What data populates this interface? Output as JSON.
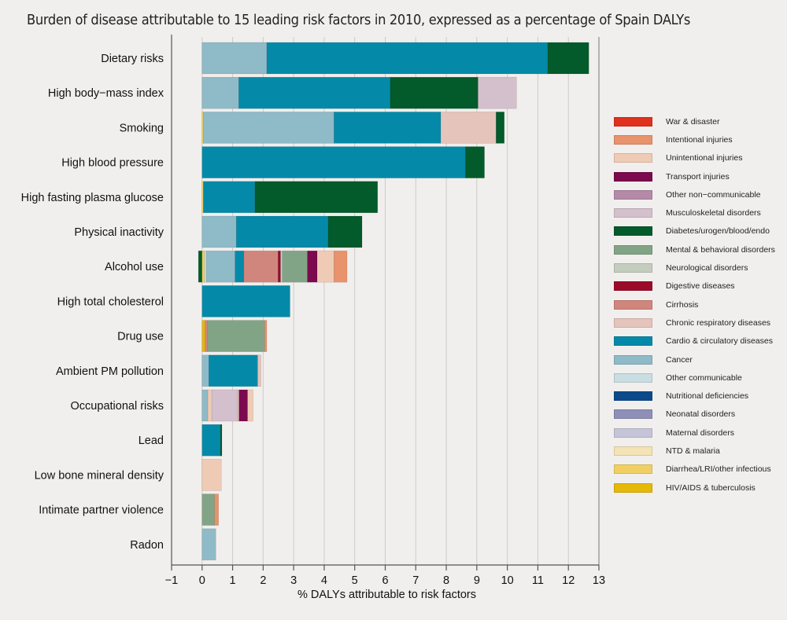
{
  "chart_data": {
    "type": "bar",
    "orientation": "horizontal-stacked",
    "title": "Burden of disease attributable to 15 leading risk factors in 2010, expressed as a percentage of Spain DALYs",
    "xlabel": "% DALYs attributable to risk factors",
    "ylabel": "",
    "xlim": [
      -1,
      13
    ],
    "xticks": [
      -1,
      0,
      1,
      2,
      3,
      4,
      5,
      6,
      7,
      8,
      9,
      10,
      11,
      12,
      13
    ],
    "grid": true,
    "legend_position": "right",
    "causes": [
      {
        "key": "war",
        "name": "War & disaster",
        "color": "#e0301e"
      },
      {
        "key": "intentional",
        "name": "Intentional injuries",
        "color": "#e8936b"
      },
      {
        "key": "unintentional",
        "name": "Unintentional injuries",
        "color": "#efcbb5"
      },
      {
        "key": "transport",
        "name": "Transport injuries",
        "color": "#7b0a4f"
      },
      {
        "key": "other_ncd",
        "name": "Other non−communicable",
        "color": "#b48aa8"
      },
      {
        "key": "musculoskeletal",
        "name": "Musculoskeletal disorders",
        "color": "#d4c0cc"
      },
      {
        "key": "diabetes",
        "name": "Diabetes/urogen/blood/endo",
        "color": "#035a2a"
      },
      {
        "key": "mental",
        "name": "Mental & behavioral disorders",
        "color": "#82a486"
      },
      {
        "key": "neurological",
        "name": "Neurological disorders",
        "color": "#c2cdbd"
      },
      {
        "key": "digestive",
        "name": "Digestive diseases",
        "color": "#9c0a2a"
      },
      {
        "key": "cirrhosis",
        "name": "Cirrhosis",
        "color": "#d0867c"
      },
      {
        "key": "chronic_resp",
        "name": "Chronic respiratory diseases",
        "color": "#e4c4bb"
      },
      {
        "key": "cardio",
        "name": "Cardio & circulatory diseases",
        "color": "#048aa8"
      },
      {
        "key": "cancer",
        "name": "Cancer",
        "color": "#8fbac8"
      },
      {
        "key": "other_comm",
        "name": "Other communicable",
        "color": "#c9dde2"
      },
      {
        "key": "nutritional",
        "name": "Nutritional deficiencies",
        "color": "#0c4a8c"
      },
      {
        "key": "neonatal",
        "name": "Neonatal disorders",
        "color": "#8e90b8"
      },
      {
        "key": "maternal",
        "name": "Maternal disorders",
        "color": "#c5c4d9"
      },
      {
        "key": "ntd",
        "name": "NTD & malaria",
        "color": "#f3e3b5"
      },
      {
        "key": "diarrhea",
        "name": "Diarrhea/LRI/other infectious",
        "color": "#f0d062"
      },
      {
        "key": "hiv",
        "name": "HIV/AIDS & tuberculosis",
        "color": "#e6b80a"
      }
    ],
    "categories": [
      "Dietary risks",
      "High body−mass index",
      "Smoking",
      "High blood pressure",
      "High fasting plasma glucose",
      "Physical inactivity",
      "Alcohol use",
      "High total cholesterol",
      "Drug use",
      "Ambient PM pollution",
      "Occupational risks",
      "Lead",
      "Low bone mineral density",
      "Intimate partner violence",
      "Radon"
    ],
    "bars": [
      {
        "category": "Dietary risks",
        "segments": [
          {
            "cause": "cancer",
            "value": 2.12
          },
          {
            "cause": "cardio",
            "value": 9.2
          },
          {
            "cause": "diabetes",
            "value": 1.35
          }
        ]
      },
      {
        "category": "High body−mass index",
        "segments": [
          {
            "cause": "cancer",
            "value": 1.2
          },
          {
            "cause": "cardio",
            "value": 4.96
          },
          {
            "cause": "diabetes",
            "value": 2.88
          },
          {
            "cause": "musculoskeletal",
            "value": 1.26
          }
        ]
      },
      {
        "category": "Smoking",
        "segments": [
          {
            "cause": "diarrhea",
            "value": 0.04
          },
          {
            "cause": "cancer",
            "value": 4.28
          },
          {
            "cause": "cardio",
            "value": 3.5
          },
          {
            "cause": "chronic_resp",
            "value": 1.81
          },
          {
            "cause": "diabetes",
            "value": 0.27
          }
        ]
      },
      {
        "category": "High blood pressure",
        "segments": [
          {
            "cause": "cardio",
            "value": 8.63
          },
          {
            "cause": "diabetes",
            "value": 0.62
          }
        ]
      },
      {
        "category": "High fasting plasma glucose",
        "segments": [
          {
            "cause": "diarrhea",
            "value": 0.04
          },
          {
            "cause": "cardio",
            "value": 1.69
          },
          {
            "cause": "diabetes",
            "value": 4.02
          }
        ]
      },
      {
        "category": "Physical inactivity",
        "segments": [
          {
            "cause": "cancer",
            "value": 1.12
          },
          {
            "cause": "cardio",
            "value": 3.01
          },
          {
            "cause": "diabetes",
            "value": 1.11
          }
        ]
      },
      {
        "category": "Alcohol use",
        "negative": [
          {
            "cause": "diabetes",
            "value": -0.12
          }
        ],
        "segments": [
          {
            "cause": "diarrhea",
            "value": 0.08
          },
          {
            "cause": "other_comm",
            "value": 0.06
          },
          {
            "cause": "cancer",
            "value": 0.94
          },
          {
            "cause": "cardio",
            "value": 0.29
          },
          {
            "cause": "cirrhosis",
            "value": 1.12
          },
          {
            "cause": "digestive",
            "value": 0.08
          },
          {
            "cause": "neurological",
            "value": 0.06
          },
          {
            "cause": "mental",
            "value": 0.82
          },
          {
            "cause": "transport",
            "value": 0.32
          },
          {
            "cause": "unintentional",
            "value": 0.55
          },
          {
            "cause": "intentional",
            "value": 0.43
          }
        ]
      },
      {
        "category": "High total cholesterol",
        "segments": [
          {
            "cause": "cardio",
            "value": 2.88
          }
        ]
      },
      {
        "category": "Drug use",
        "segments": [
          {
            "cause": "hiv",
            "value": 0.1
          },
          {
            "cause": "cirrhosis",
            "value": 0.08
          },
          {
            "cause": "mental",
            "value": 1.87
          },
          {
            "cause": "intentional",
            "value": 0.07
          }
        ]
      },
      {
        "category": "Ambient PM pollution",
        "segments": [
          {
            "cause": "cancer",
            "value": 0.22
          },
          {
            "cause": "cardio",
            "value": 1.6
          },
          {
            "cause": "chronic_resp",
            "value": 0.11
          }
        ]
      },
      {
        "category": "Occupational risks",
        "segments": [
          {
            "cause": "cancer",
            "value": 0.19
          },
          {
            "cause": "unintentional",
            "value": 0.13
          },
          {
            "cause": "musculoskeletal",
            "value": 0.84
          },
          {
            "cause": "chronic_resp",
            "value": 0.05
          },
          {
            "cause": "transport",
            "value": 0.28
          },
          {
            "cause": "unintentional",
            "value": 0.18
          }
        ]
      },
      {
        "category": "Lead",
        "segments": [
          {
            "cause": "cardio",
            "value": 0.6
          },
          {
            "cause": "diabetes",
            "value": 0.05
          }
        ]
      },
      {
        "category": "Low bone mineral density",
        "segments": [
          {
            "cause": "unintentional",
            "value": 0.63
          }
        ]
      },
      {
        "category": "Intimate partner violence",
        "segments": [
          {
            "cause": "mental",
            "value": 0.41
          },
          {
            "cause": "intentional",
            "value": 0.13
          }
        ]
      },
      {
        "category": "Radon",
        "segments": [
          {
            "cause": "cancer",
            "value": 0.45
          }
        ]
      }
    ]
  }
}
